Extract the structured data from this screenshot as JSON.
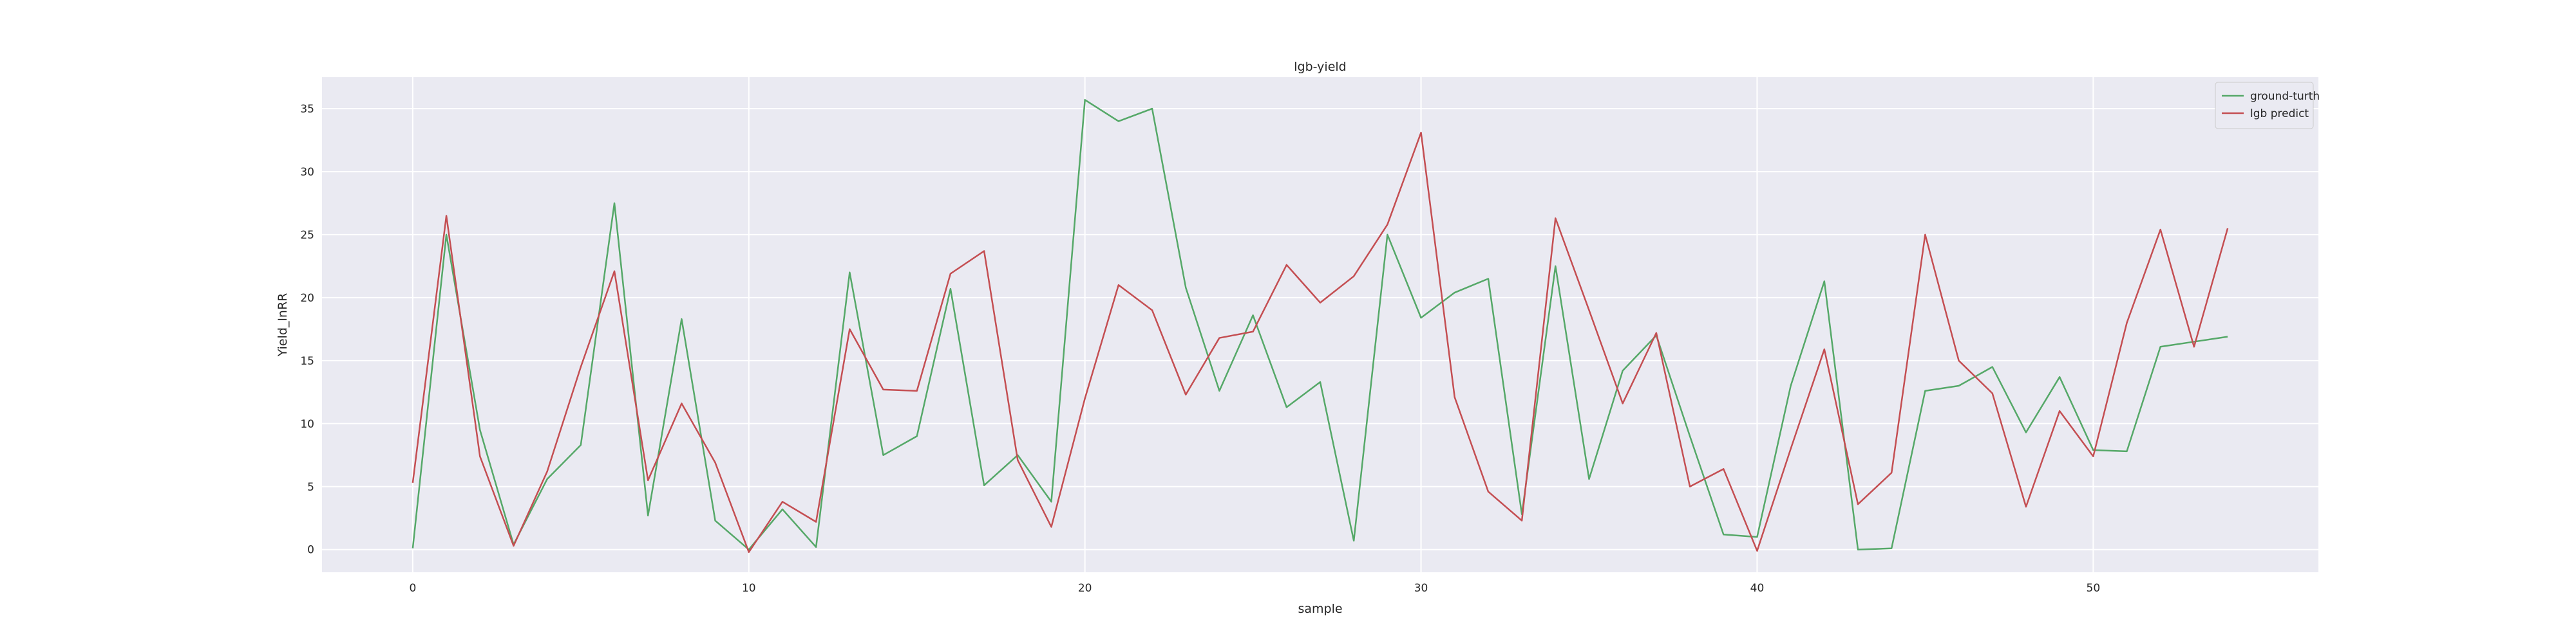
{
  "chart_data": {
    "type": "line",
    "title": "lgb-yield",
    "xlabel": "sample",
    "ylabel": "Yield_InRR",
    "xlim": [
      -2.7,
      56.7
    ],
    "ylim": [
      -1.8,
      37.5
    ],
    "xticks": [
      0,
      10,
      20,
      30,
      40,
      50
    ],
    "yticks": [
      0,
      5,
      10,
      15,
      20,
      25,
      30,
      35
    ],
    "grid": true,
    "legend_position": "top-right",
    "plot_background": "#eaeaf2",
    "series": [
      {
        "name": "ground-turth",
        "color": "#55a868",
        "values": [
          0.1,
          25.0,
          9.5,
          0.4,
          5.6,
          8.3,
          27.5,
          2.7,
          18.3,
          2.3,
          0.0,
          3.2,
          0.2,
          22.0,
          7.5,
          9.0,
          20.7,
          5.1,
          7.5,
          3.8,
          35.7,
          34.0,
          35.0,
          20.8,
          12.6,
          18.6,
          11.3,
          13.3,
          0.7,
          25.0,
          18.4,
          20.4,
          21.5,
          2.8,
          22.5,
          5.6,
          14.2,
          17.0,
          9.0,
          1.2,
          1.0,
          13.0,
          21.3,
          0.0,
          0.1,
          12.6,
          13.0,
          14.5,
          9.3,
          13.7,
          7.9,
          7.8,
          16.1,
          16.5,
          16.9
        ]
      },
      {
        "name": "lgb predict",
        "color": "#c44e52",
        "values": [
          5.3,
          26.5,
          7.4,
          0.3,
          6.2,
          14.5,
          22.1,
          5.5,
          11.6,
          6.9,
          -0.2,
          3.8,
          2.2,
          17.5,
          12.7,
          12.6,
          21.9,
          23.7,
          7.1,
          1.8,
          12.0,
          21.0,
          19.0,
          12.3,
          16.8,
          17.3,
          22.6,
          19.6,
          21.7,
          25.8,
          33.1,
          12.1,
          4.6,
          2.3,
          26.3,
          19.0,
          11.6,
          17.2,
          5.0,
          6.4,
          -0.1,
          8.0,
          15.9,
          3.6,
          6.1,
          25.0,
          15.0,
          12.4,
          3.4,
          11.0,
          7.4,
          18.0,
          25.4,
          16.1,
          25.5
        ]
      }
    ]
  }
}
